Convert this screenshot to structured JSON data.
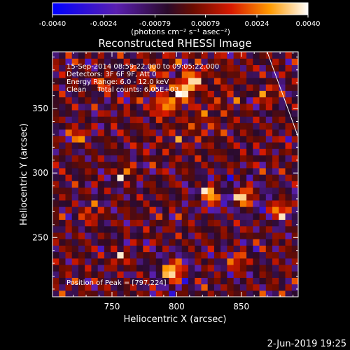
{
  "chart_data": {
    "type": "heatmap",
    "title": "Reconstructed RHESSI Image",
    "xlabel": "Heliocentric X (arcsec)",
    "ylabel": "Heliocentric Y (arcsec)",
    "xlim": [
      704,
      894
    ],
    "ylim": [
      204,
      394
    ],
    "x_ticks": [
      750,
      800,
      850
    ],
    "y_ticks": [
      250,
      300,
      350
    ],
    "colorbar": {
      "range": [
        -0.004,
        0.004
      ],
      "ticks": [
        "-0.0040",
        "-0.0024",
        "-0.00079",
        "0.00079",
        "0.0024",
        "0.0040"
      ],
      "unit_label": "(photons cm⁻² s⁻¹ asec⁻²)"
    },
    "annotations": {
      "time_range": "15-Sep-2014 08:59:22.000 to 09:05:22.000",
      "detectors": "Detectors: 3F 6F 9F, Att 0",
      "energy": "Energy Range: 6.0 - 12.0 keV",
      "clean": "Clean     Total counts: 6.05E+03",
      "peak": "Position of Peak = [797,224]"
    },
    "peak_position": [
      797,
      224
    ],
    "limb_line": [
      [
        870,
        394
      ],
      [
        894,
        328
      ]
    ],
    "hot_spots": [
      {
        "x": 803,
        "y": 362,
        "v": 0.0028
      },
      {
        "x": 812,
        "y": 372,
        "v": 0.0026
      },
      {
        "x": 790,
        "y": 352,
        "v": 0.0022
      },
      {
        "x": 826,
        "y": 284,
        "v": 0.0032
      },
      {
        "x": 852,
        "y": 282,
        "v": 0.0034
      },
      {
        "x": 797,
        "y": 224,
        "v": 0.004
      },
      {
        "x": 724,
        "y": 330,
        "v": 0.0018
      },
      {
        "x": 760,
        "y": 300,
        "v": 0.0018
      },
      {
        "x": 880,
        "y": 272,
        "v": 0.0026
      },
      {
        "x": 848,
        "y": 232,
        "v": 0.002
      },
      {
        "x": 756,
        "y": 234,
        "v": 0.0016
      },
      {
        "x": 734,
        "y": 268,
        "v": 0.0016
      },
      {
        "x": 870,
        "y": 360,
        "v": 0.0016
      },
      {
        "x": 744,
        "y": 370,
        "v": 0.0018
      }
    ],
    "grid": false
  },
  "footer": {
    "date_stamp": "2-Jun-2019 19:25"
  }
}
